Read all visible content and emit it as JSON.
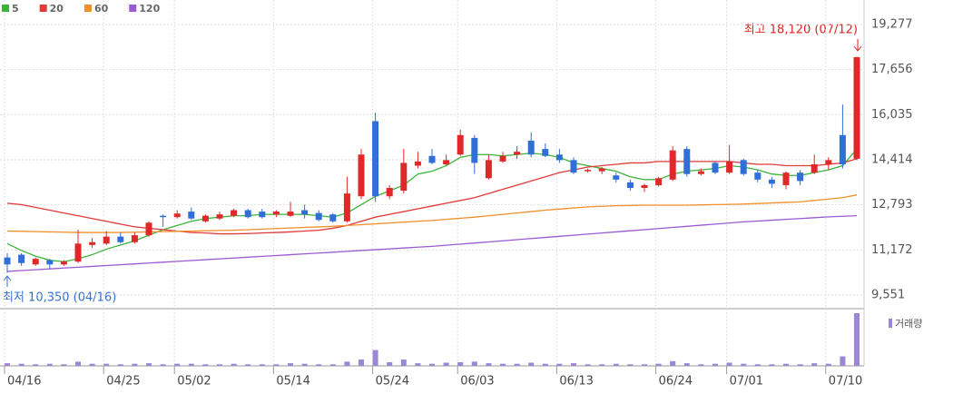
{
  "chart_data": {
    "type": "candlestick",
    "categories": [
      "04/16",
      null,
      null,
      null,
      null,
      null,
      null,
      "04/25",
      null,
      null,
      null,
      null,
      "05/02",
      null,
      null,
      null,
      null,
      null,
      null,
      "05/14",
      null,
      null,
      null,
      null,
      null,
      null,
      "05/24",
      null,
      null,
      null,
      null,
      null,
      "06/03",
      null,
      null,
      null,
      null,
      null,
      null,
      "06/13",
      null,
      null,
      null,
      null,
      null,
      null,
      "06/24",
      null,
      null,
      null,
      null,
      "07/01",
      null,
      null,
      null,
      null,
      null,
      null,
      "07/10",
      null,
      null
    ],
    "open": [
      10900,
      11000,
      10650,
      10800,
      10650,
      10750,
      11350,
      11400,
      11650,
      11450,
      11700,
      12400,
      12350,
      12550,
      12200,
      12300,
      12400,
      12600,
      12550,
      12450,
      12400,
      12600,
      12500,
      12450,
      12200,
      13100,
      15800,
      13100,
      13300,
      14200,
      14550,
      14250,
      14600,
      15200,
      13750,
      14350,
      14600,
      15100,
      14800,
      14600,
      14400,
      14000,
      14000,
      13850,
      13600,
      13400,
      13500,
      13700,
      14800,
      13900,
      14300,
      13950,
      14400,
      13950,
      13700,
      13500,
      13950,
      13950,
      14250,
      15300,
      14450
    ],
    "high": [
      11050,
      11050,
      10900,
      10850,
      10800,
      11900,
      11600,
      11850,
      11800,
      11800,
      12200,
      12450,
      12600,
      12700,
      12450,
      12550,
      12650,
      12650,
      12650,
      12600,
      12900,
      12800,
      12600,
      12500,
      13800,
      14800,
      16100,
      13500,
      14800,
      14700,
      14800,
      14600,
      15500,
      15300,
      14600,
      14700,
      14900,
      15400,
      15000,
      14800,
      14500,
      14100,
      14150,
      13950,
      13700,
      13550,
      13800,
      14900,
      14900,
      14100,
      14350,
      14950,
      14450,
      14050,
      13800,
      14000,
      14050,
      14600,
      14500,
      16400,
      18120
    ],
    "low": [
      10350,
      10600,
      10600,
      10500,
      10600,
      10700,
      11250,
      11350,
      11400,
      11400,
      11650,
      12000,
      12300,
      12250,
      12150,
      12250,
      12350,
      12300,
      12300,
      12350,
      12350,
      12300,
      12200,
      12150,
      12150,
      13000,
      12900,
      13000,
      13200,
      14100,
      14250,
      14200,
      14550,
      13900,
      13700,
      14300,
      14450,
      14500,
      14500,
      14300,
      13900,
      13950,
      13900,
      13600,
      13300,
      13250,
      13450,
      13650,
      13800,
      13850,
      13900,
      13900,
      13850,
      13600,
      13400,
      13350,
      13500,
      13900,
      14050,
      14100,
      14400
    ],
    "close": [
      10650,
      10700,
      10850,
      10650,
      10750,
      11400,
      11450,
      11650,
      11450,
      11700,
      12150,
      12350,
      12480,
      12300,
      12400,
      12450,
      12600,
      12350,
      12350,
      12550,
      12550,
      12450,
      12250,
      12200,
      13200,
      14600,
      13100,
      13400,
      14300,
      14350,
      14300,
      14400,
      15300,
      14300,
      14400,
      14550,
      14700,
      14600,
      14550,
      14400,
      13950,
      14050,
      14100,
      13700,
      13400,
      13500,
      13750,
      14750,
      13900,
      14000,
      13950,
      14350,
      13900,
      13700,
      13550,
      13950,
      13650,
      14250,
      14400,
      14250,
      18100
    ],
    "up_color": "#e02828",
    "down_color": "#2f6fd6",
    "series": [
      {
        "name": "5",
        "color": "#3cb43c",
        "values": [
          11400,
          11150,
          10950,
          10800,
          10750,
          10850,
          11000,
          11200,
          11350,
          11500,
          11700,
          11900,
          12050,
          12200,
          12300,
          12350,
          12400,
          12400,
          12450,
          12450,
          12450,
          12450,
          12400,
          12350,
          12500,
          12800,
          13100,
          13300,
          13500,
          13900,
          14000,
          14200,
          14500,
          14600,
          14600,
          14550,
          14600,
          14650,
          14600,
          14500,
          14300,
          14200,
          14100,
          14000,
          13800,
          13700,
          13700,
          13900,
          14000,
          14050,
          14100,
          14200,
          14150,
          14050,
          13900,
          13850,
          13850,
          13950,
          14050,
          14200,
          14800
        ]
      },
      {
        "name": "20",
        "color": "#e03a3a",
        "values": [
          12850,
          12800,
          12700,
          12600,
          12500,
          12400,
          12300,
          12200,
          12100,
          12000,
          11950,
          11900,
          11850,
          11800,
          11780,
          11750,
          11750,
          11760,
          11780,
          11800,
          11820,
          11850,
          11880,
          11950,
          12050,
          12200,
          12350,
          12450,
          12550,
          12650,
          12750,
          12850,
          12950,
          13050,
          13200,
          13350,
          13500,
          13650,
          13800,
          13950,
          14050,
          14150,
          14200,
          14250,
          14300,
          14300,
          14350,
          14350,
          14350,
          14350,
          14350,
          14350,
          14300,
          14250,
          14250,
          14200,
          14200,
          14200,
          14250,
          14300,
          14450
        ]
      },
      {
        "name": "60",
        "color": "#f0902c",
        "values": [
          11850,
          11840,
          11830,
          11820,
          11810,
          11800,
          11800,
          11800,
          11800,
          11810,
          11820,
          11830,
          11840,
          11850,
          11860,
          11870,
          11880,
          11900,
          11920,
          11940,
          11960,
          11980,
          12000,
          12020,
          12050,
          12080,
          12110,
          12140,
          12170,
          12200,
          12230,
          12270,
          12310,
          12350,
          12400,
          12450,
          12500,
          12550,
          12600,
          12640,
          12680,
          12720,
          12740,
          12760,
          12770,
          12780,
          12780,
          12780,
          12780,
          12790,
          12800,
          12810,
          12820,
          12840,
          12860,
          12880,
          12900,
          12950,
          13000,
          13050,
          13150
        ]
      },
      {
        "name": "120",
        "color": "#9a5ad2",
        "values": [
          10400,
          10430,
          10460,
          10490,
          10520,
          10550,
          10580,
          10610,
          10640,
          10670,
          10700,
          10730,
          10760,
          10790,
          10820,
          10850,
          10880,
          10910,
          10940,
          10970,
          11000,
          11030,
          11060,
          11090,
          11120,
          11150,
          11180,
          11210,
          11240,
          11270,
          11300,
          11340,
          11380,
          11420,
          11460,
          11500,
          11540,
          11580,
          11620,
          11660,
          11700,
          11740,
          11780,
          11820,
          11860,
          11900,
          11940,
          11980,
          12020,
          12060,
          12100,
          12140,
          12180,
          12210,
          12240,
          12270,
          12300,
          12330,
          12360,
          12380,
          12400
        ]
      }
    ],
    "ylim": [
      9060,
      19830
    ],
    "yticks": [
      {
        "value": 19277,
        "label": "19,277"
      },
      {
        "value": 17656,
        "label": "17,656"
      },
      {
        "value": 16035,
        "label": "16,035"
      },
      {
        "value": 14414,
        "label": "14,414"
      },
      {
        "value": 12793,
        "label": "12,793"
      },
      {
        "value": 11172,
        "label": "11,172"
      },
      {
        "value": 9551,
        "label": "9,551"
      }
    ],
    "grid": true,
    "annotations": {
      "high": "최고 18,120 (07/12)",
      "low": "최저 10,350 (04/16)"
    },
    "volume": {
      "name": "거래량",
      "color": "#9b87d6",
      "ylim": [
        0,
        100
      ],
      "values": [
        5,
        4,
        3,
        4,
        3,
        8,
        4,
        4,
        3,
        4,
        5,
        3,
        4,
        4,
        3,
        3,
        4,
        3,
        3,
        3,
        5,
        4,
        3,
        3,
        8,
        12,
        30,
        7,
        12,
        5,
        4,
        6,
        7,
        8,
        5,
        4,
        4,
        6,
        4,
        4,
        5,
        3,
        3,
        4,
        3,
        3,
        4,
        9,
        5,
        3,
        4,
        6,
        4,
        3,
        3,
        4,
        3,
        5,
        4,
        18,
        100
      ]
    }
  }
}
